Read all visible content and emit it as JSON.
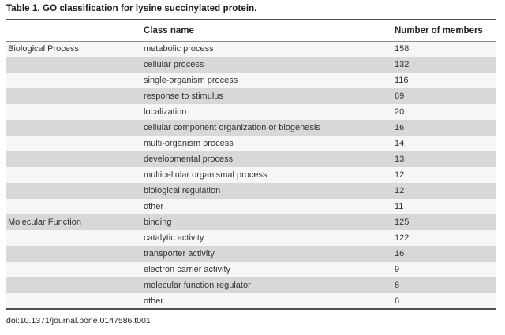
{
  "title": "Table 1.  GO classification for lysine succinylated protein.",
  "footer": "doi:10.1371/journal.pone.0147586.t001",
  "colors": {
    "row_shade": "#d8d8d8",
    "row_light": "#f6f6f6",
    "rule_dark": "#4f4f4f",
    "rule_header": "#8a8a8a"
  },
  "table": {
    "columns": [
      "",
      "Class name",
      "Number of members"
    ],
    "rows": [
      {
        "category": "Biological Process",
        "class_name": "metabolic process",
        "members": 158
      },
      {
        "category": "",
        "class_name": "cellular process",
        "members": 132
      },
      {
        "category": "",
        "class_name": "single-organism process",
        "members": 116
      },
      {
        "category": "",
        "class_name": "response to stimulus",
        "members": 69
      },
      {
        "category": "",
        "class_name": "localization",
        "members": 20
      },
      {
        "category": "",
        "class_name": "cellular component organization or biogenesis",
        "members": 16
      },
      {
        "category": "",
        "class_name": "multi-organism process",
        "members": 14
      },
      {
        "category": "",
        "class_name": "developmental process",
        "members": 13
      },
      {
        "category": "",
        "class_name": "multicellular organismal process",
        "members": 12
      },
      {
        "category": "",
        "class_name": "biological regulation",
        "members": 12
      },
      {
        "category": "",
        "class_name": "other",
        "members": 11
      },
      {
        "category": "Molecular Function",
        "class_name": "binding",
        "members": 125
      },
      {
        "category": "",
        "class_name": "catalytic activity",
        "members": 122
      },
      {
        "category": "",
        "class_name": "transporter activity",
        "members": 16
      },
      {
        "category": "",
        "class_name": "electron carrier activity",
        "members": 9
      },
      {
        "category": "",
        "class_name": "molecular function regulator",
        "members": 6
      },
      {
        "category": "",
        "class_name": "other",
        "members": 6
      }
    ]
  }
}
